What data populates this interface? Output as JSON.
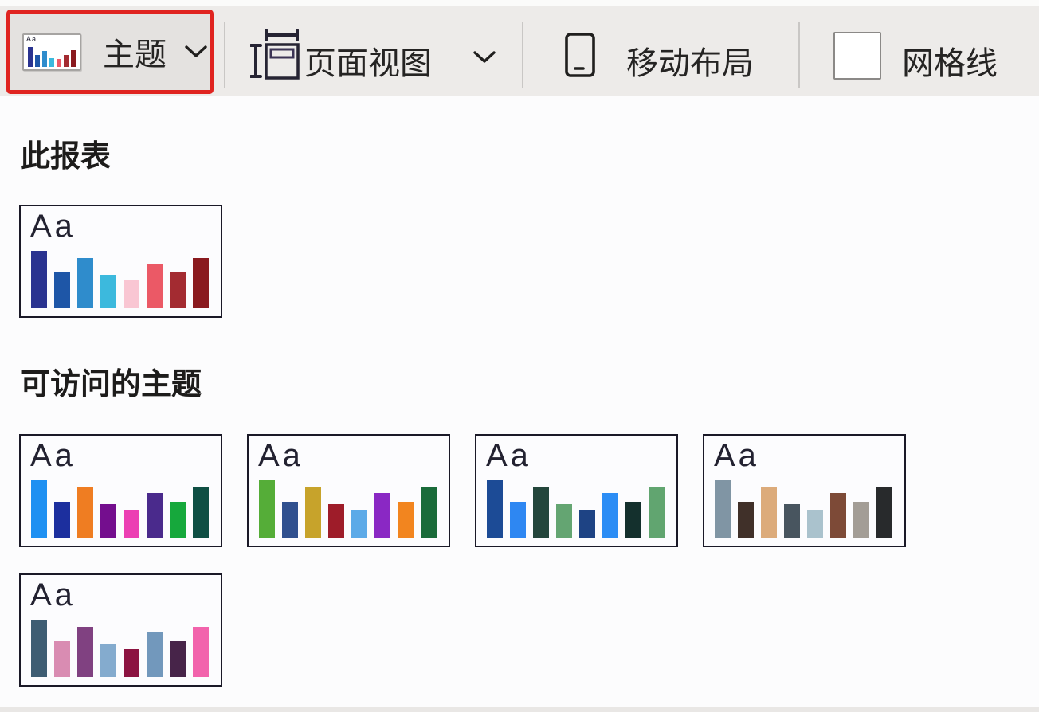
{
  "toolbar": {
    "theme_button": {
      "label": "主题",
      "annotation_color": "#e02420",
      "icon_sample_text": "Aa",
      "icon_bar_colors": [
        "#2a3390",
        "#1e56a7",
        "#2f8ccc",
        "#3cb9dd",
        "#eb5966",
        "#a32b31",
        "#8a1a1f"
      ],
      "icon_bar_heights": [
        25,
        15,
        20,
        11,
        10,
        15,
        21
      ]
    },
    "page_view_button": {
      "label": "页面视图"
    },
    "mobile_layout_button": {
      "label": "移动布局"
    },
    "gridlines_toggle": {
      "label": "网格线",
      "checked": false
    }
  },
  "theme_dropdown": {
    "sections": [
      {
        "title": "此报表",
        "themes": [
          {
            "sample_text": "Aa",
            "bar_colors": [
              "#2a3390",
              "#1e56a7",
              "#2f8ccc",
              "#3cb9dd",
              "#f9c6d3",
              "#eb5966",
              "#a32b31",
              "#8a1a1f"
            ],
            "bar_heights": [
              72,
              45,
              63,
              42,
              35,
              56,
              45,
              63
            ]
          }
        ]
      },
      {
        "title": "可访问的主题",
        "themes": [
          {
            "sample_text": "Aa",
            "bar_colors": [
              "#1e90f2",
              "#1c2f9e",
              "#ef7d22",
              "#740e8e",
              "#ec3fb3",
              "#4a2a8c",
              "#16a83c",
              "#0f4f44"
            ],
            "bar_heights": [
              72,
              45,
              63,
              42,
              35,
              56,
              45,
              63
            ]
          },
          {
            "sample_text": "Aa",
            "bar_colors": [
              "#55ad38",
              "#30508f",
              "#c7a32b",
              "#9e1c29",
              "#5caae8",
              "#8a28c4",
              "#f2851f",
              "#1a6b3a"
            ],
            "bar_heights": [
              72,
              45,
              63,
              42,
              35,
              56,
              45,
              63
            ]
          },
          {
            "sample_text": "Aa",
            "bar_colors": [
              "#1c4b96",
              "#2e87f2",
              "#24463c",
              "#64a572",
              "#1e4384",
              "#2c8df5",
              "#14302d",
              "#61a570"
            ],
            "bar_heights": [
              72,
              45,
              63,
              42,
              35,
              56,
              45,
              63
            ]
          },
          {
            "sample_text": "Aa",
            "bar_colors": [
              "#8095a4",
              "#403029",
              "#dcab7b",
              "#48555f",
              "#aac2cd",
              "#7d4a37",
              "#a39d96",
              "#282a2c"
            ],
            "bar_heights": [
              72,
              45,
              63,
              42,
              35,
              56,
              45,
              63
            ]
          },
          {
            "sample_text": "Aa",
            "bar_colors": [
              "#3e5d73",
              "#d98cb2",
              "#804181",
              "#84abce",
              "#8c1341",
              "#7298bc",
              "#472449",
              "#f263ac"
            ],
            "bar_heights": [
              72,
              45,
              63,
              42,
              35,
              56,
              45,
              63
            ]
          }
        ]
      }
    ]
  }
}
